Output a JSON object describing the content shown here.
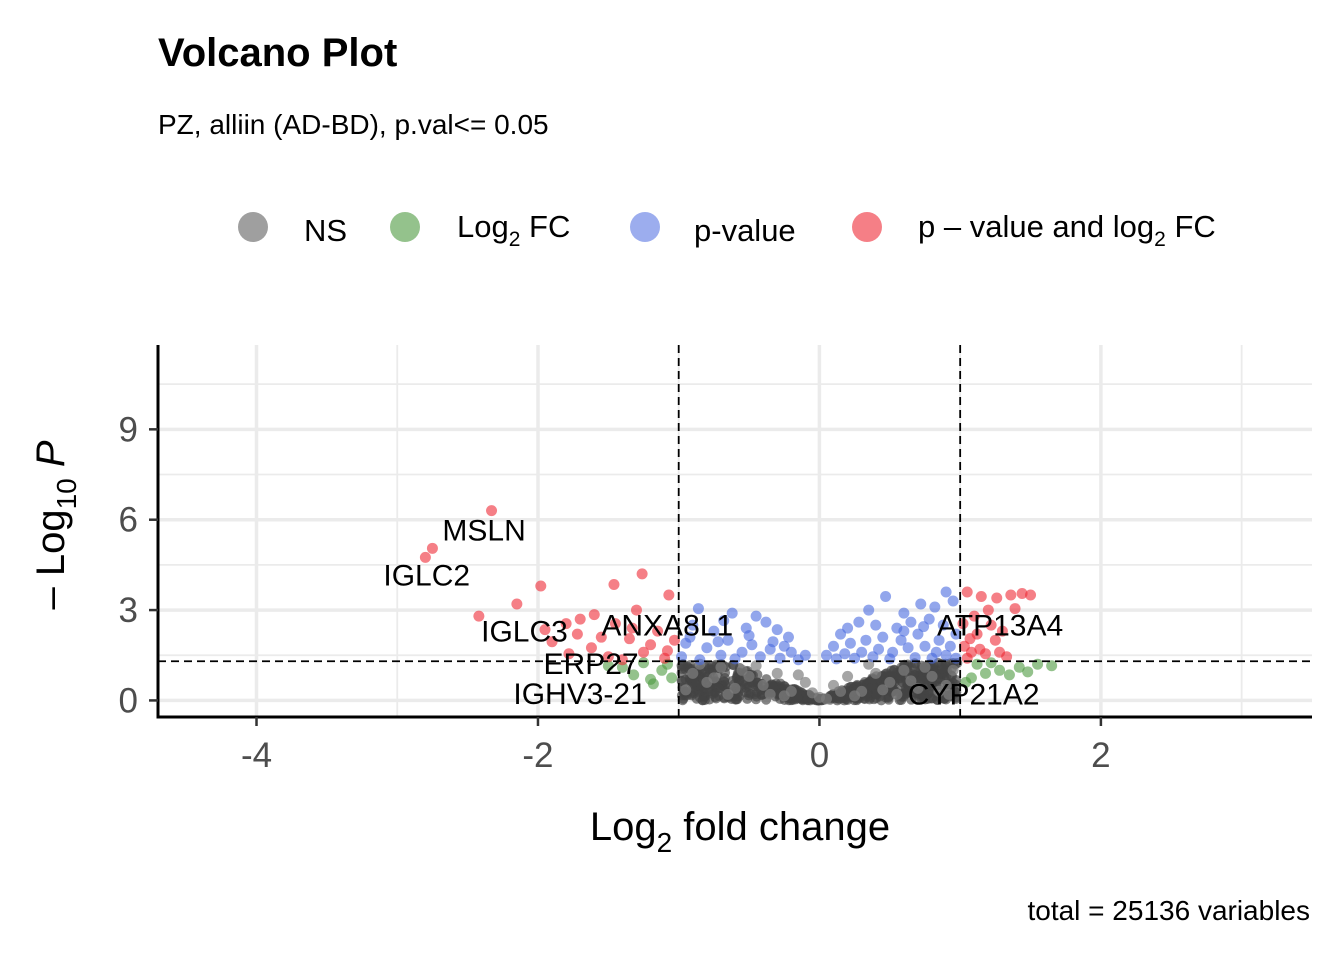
{
  "chart_data": {
    "type": "scatter",
    "title": "Volcano Plot",
    "subtitle": "PZ, alliin (AD-BD), p.val<= 0.05",
    "caption": "total = 25136 variables",
    "xlabel": {
      "prefix": "Log",
      "sub": "2",
      "suffix": " fold change"
    },
    "ylabel": {
      "prefix": "– Log",
      "sub": "10",
      "suffix": " P"
    },
    "xlim": [
      -4.7,
      3.5
    ],
    "ylim": [
      -0.55,
      11.8
    ],
    "x_ticks": [
      -4,
      -2,
      0,
      2
    ],
    "y_ticks": [
      0,
      3,
      6,
      9
    ],
    "grid": true,
    "legend_position": "top",
    "fc_cutoff": 1,
    "p_cutoff_log10": 1.3,
    "legend": [
      {
        "key": "NS",
        "label": "NS",
        "color": "#7f7f7f"
      },
      {
        "key": "FC",
        "label_prefix": "Log",
        "label_sub": "2",
        "label_suffix": " FC",
        "color": "#4c9a3f"
      },
      {
        "key": "P",
        "label": "p-value",
        "color": "#4a6ae0"
      },
      {
        "key": "FCP",
        "label_prefix": "p – value and log",
        "label_sub": "2",
        "label_suffix": " FC",
        "color": "#ef2a36"
      }
    ],
    "series": [
      {
        "key": "FCP",
        "points": [
          [
            -2.33,
            6.3
          ],
          [
            -2.75,
            5.05
          ],
          [
            -2.8,
            4.75
          ],
          [
            -1.98,
            3.8
          ],
          [
            -1.46,
            3.85
          ],
          [
            -1.26,
            4.2
          ],
          [
            -2.15,
            3.2
          ],
          [
            -2.42,
            2.8
          ],
          [
            -1.07,
            3.5
          ],
          [
            -1.8,
            2.55
          ],
          [
            -1.6,
            2.85
          ],
          [
            -1.3,
            3.0
          ],
          [
            -1.72,
            2.2
          ],
          [
            -1.45,
            2.55
          ],
          [
            -1.55,
            2.1
          ],
          [
            -1.9,
            1.95
          ],
          [
            -1.35,
            2.05
          ],
          [
            -1.62,
            1.75
          ],
          [
            -1.15,
            2.3
          ],
          [
            -1.78,
            1.55
          ],
          [
            -1.25,
            1.6
          ],
          [
            -1.5,
            1.45
          ],
          [
            -1.2,
            1.85
          ],
          [
            -1.08,
            1.65
          ],
          [
            -1.7,
            2.7
          ],
          [
            -1.4,
            1.35
          ],
          [
            -1.1,
            1.4
          ],
          [
            -1.95,
            2.35
          ],
          [
            -1.33,
            2.4
          ],
          [
            -1.03,
            2.0
          ],
          [
            1.05,
            3.6
          ],
          [
            1.15,
            3.45
          ],
          [
            1.26,
            3.4
          ],
          [
            1.36,
            3.5
          ],
          [
            1.44,
            3.55
          ],
          [
            1.5,
            3.5
          ],
          [
            1.39,
            3.05
          ],
          [
            1.2,
            3.0
          ],
          [
            1.1,
            2.8
          ],
          [
            1.02,
            2.55
          ],
          [
            1.12,
            2.2
          ],
          [
            1.25,
            2.0
          ],
          [
            1.03,
            1.8
          ],
          [
            1.08,
            1.6
          ],
          [
            1.18,
            1.55
          ],
          [
            1.28,
            1.6
          ],
          [
            1.05,
            1.4
          ],
          [
            1.14,
            1.7
          ],
          [
            1.33,
            1.45
          ],
          [
            1.22,
            2.5
          ],
          [
            1.07,
            2.05
          ],
          [
            1.3,
            2.3
          ]
        ]
      },
      {
        "key": "P",
        "points": [
          [
            -0.86,
            3.05
          ],
          [
            -0.62,
            2.9
          ],
          [
            -0.45,
            2.8
          ],
          [
            -0.38,
            2.6
          ],
          [
            -0.22,
            2.1
          ],
          [
            -0.9,
            2.5
          ],
          [
            -0.75,
            2.3
          ],
          [
            -0.52,
            2.4
          ],
          [
            -0.3,
            2.35
          ],
          [
            -0.95,
            1.9
          ],
          [
            -0.8,
            1.75
          ],
          [
            -0.65,
            2.0
          ],
          [
            -0.48,
            1.85
          ],
          [
            -0.35,
            1.7
          ],
          [
            -0.2,
            1.6
          ],
          [
            -0.1,
            1.5
          ],
          [
            -0.98,
            1.45
          ],
          [
            -0.7,
            1.5
          ],
          [
            -0.55,
            1.6
          ],
          [
            -0.42,
            1.45
          ],
          [
            -0.28,
            1.4
          ],
          [
            -0.15,
            1.35
          ],
          [
            -0.85,
            1.35
          ],
          [
            -0.6,
            1.38
          ],
          [
            -0.92,
            2.1
          ],
          [
            -0.68,
            2.65
          ],
          [
            -0.5,
            2.15
          ],
          [
            -0.33,
            1.95
          ],
          [
            -0.25,
            1.8
          ],
          [
            -0.72,
            1.95
          ],
          [
            0.47,
            3.45
          ],
          [
            0.9,
            3.6
          ],
          [
            0.95,
            3.3
          ],
          [
            0.82,
            3.1
          ],
          [
            0.72,
            3.2
          ],
          [
            0.6,
            2.9
          ],
          [
            0.35,
            3.0
          ],
          [
            0.28,
            2.6
          ],
          [
            0.2,
            2.4
          ],
          [
            0.15,
            2.2
          ],
          [
            0.4,
            2.5
          ],
          [
            0.55,
            2.4
          ],
          [
            0.65,
            2.6
          ],
          [
            0.78,
            2.7
          ],
          [
            0.88,
            2.5
          ],
          [
            0.97,
            2.2
          ],
          [
            0.1,
            1.8
          ],
          [
            0.22,
            1.9
          ],
          [
            0.33,
            2.0
          ],
          [
            0.45,
            2.1
          ],
          [
            0.58,
            2.0
          ],
          [
            0.7,
            2.2
          ],
          [
            0.85,
            2.0
          ],
          [
            0.93,
            1.8
          ],
          [
            0.05,
            1.5
          ],
          [
            0.18,
            1.55
          ],
          [
            0.3,
            1.6
          ],
          [
            0.42,
            1.7
          ],
          [
            0.52,
            1.6
          ],
          [
            0.63,
            1.75
          ],
          [
            0.75,
            1.8
          ],
          [
            0.83,
            1.6
          ],
          [
            0.9,
            1.5
          ],
          [
            0.97,
            1.4
          ],
          [
            0.25,
            1.4
          ],
          [
            0.38,
            1.45
          ],
          [
            0.5,
            1.38
          ],
          [
            0.68,
            1.42
          ],
          [
            0.8,
            1.4
          ],
          [
            0.12,
            1.38
          ],
          [
            0.6,
            2.3
          ],
          [
            0.74,
            2.45
          ]
        ]
      },
      {
        "key": "FC",
        "points": [
          [
            -1.25,
            1.25
          ],
          [
            -1.12,
            1.0
          ],
          [
            -1.05,
            0.75
          ],
          [
            -1.32,
            0.85
          ],
          [
            -1.18,
            0.55
          ],
          [
            -1.4,
            1.1
          ],
          [
            -1.08,
            1.2
          ],
          [
            -1.2,
            0.7
          ],
          [
            -1.5,
            1.15
          ],
          [
            1.42,
            1.1
          ],
          [
            1.55,
            1.2
          ],
          [
            1.65,
            1.15
          ],
          [
            1.28,
            1.0
          ],
          [
            1.18,
            0.9
          ],
          [
            1.08,
            0.75
          ],
          [
            1.35,
            0.85
          ],
          [
            1.12,
            1.2
          ],
          [
            1.04,
            0.6
          ],
          [
            1.22,
            1.25
          ],
          [
            1.48,
            0.95
          ]
        ]
      },
      {
        "key": "NS",
        "points": [
          [
            -0.9,
            0.9
          ],
          [
            -0.8,
            0.6
          ],
          [
            -0.7,
            1.1
          ],
          [
            -0.6,
            0.4
          ],
          [
            -0.5,
            0.8
          ],
          [
            -0.4,
            0.5
          ],
          [
            -0.3,
            0.9
          ],
          [
            -0.2,
            0.3
          ],
          [
            -0.1,
            0.6
          ],
          [
            0.0,
            0.1
          ],
          [
            0.1,
            0.5
          ],
          [
            0.2,
            0.8
          ],
          [
            0.3,
            0.3
          ],
          [
            0.4,
            0.9
          ],
          [
            0.5,
            0.6
          ],
          [
            0.6,
            1.0
          ],
          [
            0.7,
            0.4
          ],
          [
            0.8,
            0.8
          ],
          [
            0.9,
            0.5
          ],
          [
            0.95,
            1.0
          ],
          [
            -0.95,
            0.35
          ],
          [
            -0.85,
            1.2
          ],
          [
            -0.65,
            0.2
          ],
          [
            -0.45,
            1.15
          ],
          [
            -0.25,
            0.15
          ],
          [
            -0.05,
            0.25
          ],
          [
            0.05,
            0.05
          ],
          [
            0.15,
            0.3
          ],
          [
            0.35,
            1.2
          ],
          [
            0.55,
            0.2
          ],
          [
            0.75,
            1.1
          ],
          [
            0.85,
            0.3
          ],
          [
            -0.75,
            0.75
          ],
          [
            -0.55,
            1.0
          ],
          [
            -0.35,
            0.2
          ],
          [
            -0.15,
            0.85
          ],
          [
            0.25,
            0.15
          ],
          [
            0.45,
            0.35
          ],
          [
            0.65,
            0.65
          ],
          [
            0.92,
            0.2
          ]
        ]
      }
    ],
    "labels": [
      {
        "text": "MSLN",
        "x": -2.75,
        "y": 5.05
      },
      {
        "text": "IGLC2",
        "x": -2.8,
        "y": 4.75
      },
      {
        "text": "IGLC3",
        "x": -1.8,
        "y": 2.55
      },
      {
        "text": "ANXA8L1",
        "x": -1.45,
        "y": 2.55
      },
      {
        "text": "ERP27",
        "x": -1.25,
        "y": 1.6
      },
      {
        "text": "IGHV3-21",
        "x": -1.18,
        "y": 0.55
      },
      {
        "text": "ATP13A4",
        "x": 1.02,
        "y": 2.55
      },
      {
        "text": "CYP21A2",
        "x": 1.04,
        "y": 0.6
      }
    ]
  }
}
